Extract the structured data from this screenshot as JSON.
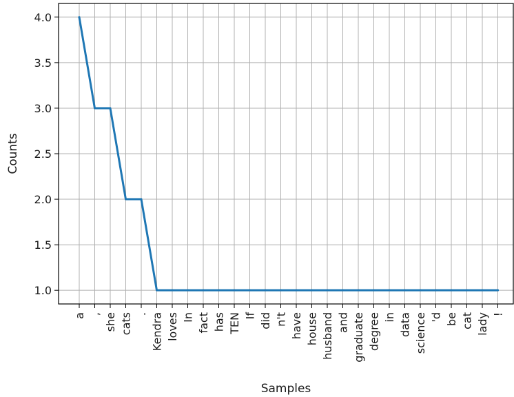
{
  "chart_data": {
    "type": "line",
    "title": "",
    "xlabel": "Samples",
    "ylabel": "Counts",
    "categories": [
      "a",
      ",",
      "she",
      "cats",
      ".",
      "Kendra",
      "loves",
      "In",
      "fact",
      "has",
      "TEN",
      "If",
      "did",
      "n't",
      "have",
      "house",
      "husband",
      "and",
      "graduate",
      "degree",
      "in",
      "data",
      "science",
      "'d",
      "be",
      "cat",
      "lady",
      "!"
    ],
    "values": [
      4,
      3,
      3,
      2,
      2,
      1,
      1,
      1,
      1,
      1,
      1,
      1,
      1,
      1,
      1,
      1,
      1,
      1,
      1,
      1,
      1,
      1,
      1,
      1,
      1,
      1,
      1,
      1
    ],
    "yticks": [
      "1.0",
      "1.5",
      "2.0",
      "2.5",
      "3.0",
      "3.5",
      "4.0"
    ],
    "ylim": [
      0.85,
      4.15
    ],
    "grid": true,
    "legend": "none",
    "line_color": "#1f77b4"
  }
}
